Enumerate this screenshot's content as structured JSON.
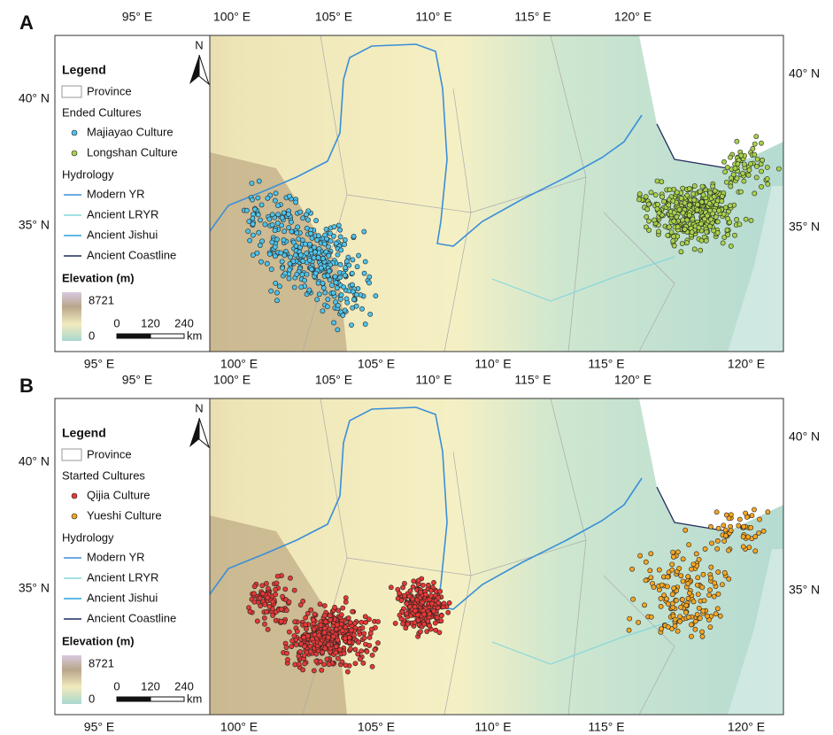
{
  "panels": [
    {
      "label": "A",
      "top_lon": [
        "95° E",
        "100° E",
        "105° E",
        "110° E",
        "115° E",
        "120° E"
      ],
      "bottom_lon": [
        "95° E",
        "100° E",
        "105° E",
        "110° E",
        "115° E",
        "120° E"
      ],
      "left_lat": [
        "40° N",
        "35° N"
      ],
      "right_lat": [
        "40° N",
        "35° N"
      ],
      "legend": {
        "title": "Legend",
        "province": "Province",
        "group_title": "Ended Cultures",
        "cultures": [
          {
            "name": "Majiayao Culture",
            "color": "#4fc3ea"
          },
          {
            "name": "Longshan Culture",
            "color": "#a8d24c"
          }
        ],
        "hydrology_title": "Hydrology",
        "hydrology": [
          {
            "name": "Modern YR",
            "color": "#3a8fd8"
          },
          {
            "name": "Ancient LRYR",
            "color": "#86d6dc"
          },
          {
            "name": "Ancient Jishui",
            "color": "#2aa3e0"
          },
          {
            "name": "Ancient Coastline",
            "color": "#1f2a5a"
          }
        ],
        "elevation_title": "Elevation (m)",
        "elevation_max": 8721,
        "elevation_min": 0,
        "scale": [
          0,
          120,
          240
        ],
        "scale_unit": "km",
        "north": "N"
      }
    },
    {
      "label": "B",
      "top_lon": [
        "95° E",
        "100° E",
        "105° E",
        "110° E",
        "115° E",
        "120° E"
      ],
      "bottom_lon": [
        "95° E",
        "100° E",
        "105° E",
        "110° E",
        "115° E",
        "120° E"
      ],
      "left_lat": [
        "40° N",
        "35° N"
      ],
      "right_lat": [
        "40° N",
        "35° N"
      ],
      "legend": {
        "title": "Legend",
        "province": "Province",
        "group_title": "Started Cultures",
        "cultures": [
          {
            "name": "Qijia Culture",
            "color": "#e53935"
          },
          {
            "name": "Yueshi Culture",
            "color": "#f5a623"
          }
        ],
        "hydrology_title": "Hydrology",
        "hydrology": [
          {
            "name": "Modern YR",
            "color": "#3a8fd8"
          },
          {
            "name": "Ancient LRYR",
            "color": "#86d6dc"
          },
          {
            "name": "Ancient Jishui",
            "color": "#2aa3e0"
          },
          {
            "name": "Ancient Coastline",
            "color": "#1f2a5a"
          }
        ],
        "elevation_title": "Elevation (m)",
        "elevation_max": 8721,
        "elevation_min": 0,
        "scale": [
          0,
          120,
          240
        ],
        "scale_unit": "km",
        "north": "N"
      }
    }
  ]
}
